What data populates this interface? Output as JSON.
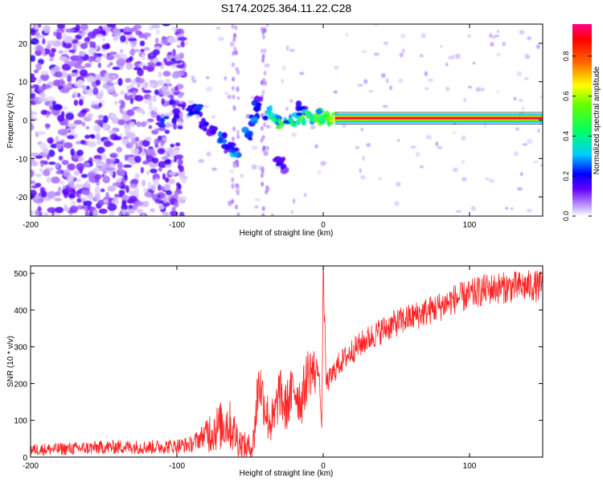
{
  "figure": {
    "title": "S174.2025.364.11.22.C28"
  },
  "chart_data": [
    {
      "type": "heatmap",
      "xlabel": "Height of straight line (km)",
      "ylabel": "Frequency (Hz)",
      "xlim": [
        -200,
        150
      ],
      "ylim": [
        -25,
        25
      ],
      "xticks": [
        -200,
        -100,
        0,
        100
      ],
      "yticks": [
        -20,
        -10,
        0,
        10,
        20
      ],
      "colorbar": {
        "label": "Normalized spectral amplitude",
        "range": [
          0,
          0.96
        ],
        "ticks": [
          0.0,
          0.2,
          0.4,
          0.6,
          0.8
        ]
      },
      "features": {
        "tone_frequency_hz": 0.5,
        "tone_start_km": 8,
        "noise_region_km": [
          -200,
          -100
        ],
        "ridge_points": [
          {
            "x": -110,
            "y": 0,
            "v": 0.25
          },
          {
            "x": -100,
            "y": 1,
            "v": 0.18
          },
          {
            "x": -90,
            "y": 2,
            "v": 0.22
          },
          {
            "x": -85,
            "y": 3,
            "v": 0.25
          },
          {
            "x": -80,
            "y": -1,
            "v": 0.22
          },
          {
            "x": -75,
            "y": -3,
            "v": 0.2
          },
          {
            "x": -70,
            "y": -5,
            "v": 0.25
          },
          {
            "x": -65,
            "y": -7,
            "v": 0.2
          },
          {
            "x": -60,
            "y": -9,
            "v": 0.3
          },
          {
            "x": -52,
            "y": -4,
            "v": 0.25
          },
          {
            "x": -48,
            "y": 0,
            "v": 0.3
          },
          {
            "x": -44,
            "y": 4,
            "v": 0.22
          },
          {
            "x": -38,
            "y": 2,
            "v": 0.35
          },
          {
            "x": -33,
            "y": 0,
            "v": 0.45
          },
          {
            "x": -28,
            "y": -1,
            "v": 0.5
          },
          {
            "x": -22,
            "y": 0,
            "v": 0.4
          },
          {
            "x": -16,
            "y": 0,
            "v": 0.5
          },
          {
            "x": -14,
            "y": 3,
            "v": 0.22
          },
          {
            "x": -10,
            "y": 1,
            "v": 0.45
          },
          {
            "x": -5,
            "y": 0,
            "v": 0.55
          },
          {
            "x": 0,
            "y": 1,
            "v": 0.5
          },
          {
            "x": 5,
            "y": 0.5,
            "v": 0.6
          },
          {
            "x": -30,
            "y": -11,
            "v": 0.18
          },
          {
            "x": -27,
            "y": -12,
            "v": 0.16
          }
        ]
      }
    },
    {
      "type": "line",
      "xlabel": "Height of straight line (km)",
      "ylabel": "SNR (10 * v/v)",
      "xlim": [
        -200,
        150
      ],
      "ylim": [
        0,
        520
      ],
      "xticks": [
        -200,
        -100,
        0,
        100
      ],
      "yticks": [
        0,
        100,
        200,
        300,
        400,
        500
      ],
      "color": "#ff2222",
      "series": [
        {
          "name": "SNR",
          "x": [
            -200,
            -180,
            -160,
            -140,
            -120,
            -100,
            -90,
            -80,
            -72,
            -65,
            -60,
            -56,
            -52,
            -48,
            -46,
            -44,
            -41,
            -38,
            -34,
            -30,
            -26,
            -20,
            -15,
            -10,
            -6,
            -3,
            -2,
            -1,
            0,
            2,
            5,
            10,
            20,
            30,
            40,
            50,
            60,
            70,
            80,
            90,
            100,
            110,
            120,
            130,
            140,
            150
          ],
          "y": [
            20,
            22,
            25,
            28,
            27,
            30,
            35,
            65,
            80,
            95,
            60,
            35,
            25,
            30,
            120,
            210,
            160,
            110,
            90,
            180,
            130,
            190,
            150,
            240,
            230,
            250,
            150,
            80,
            520,
            200,
            215,
            250,
            290,
            320,
            345,
            365,
            380,
            395,
            410,
            430,
            440,
            455,
            460,
            462,
            465,
            465
          ]
        }
      ]
    }
  ]
}
